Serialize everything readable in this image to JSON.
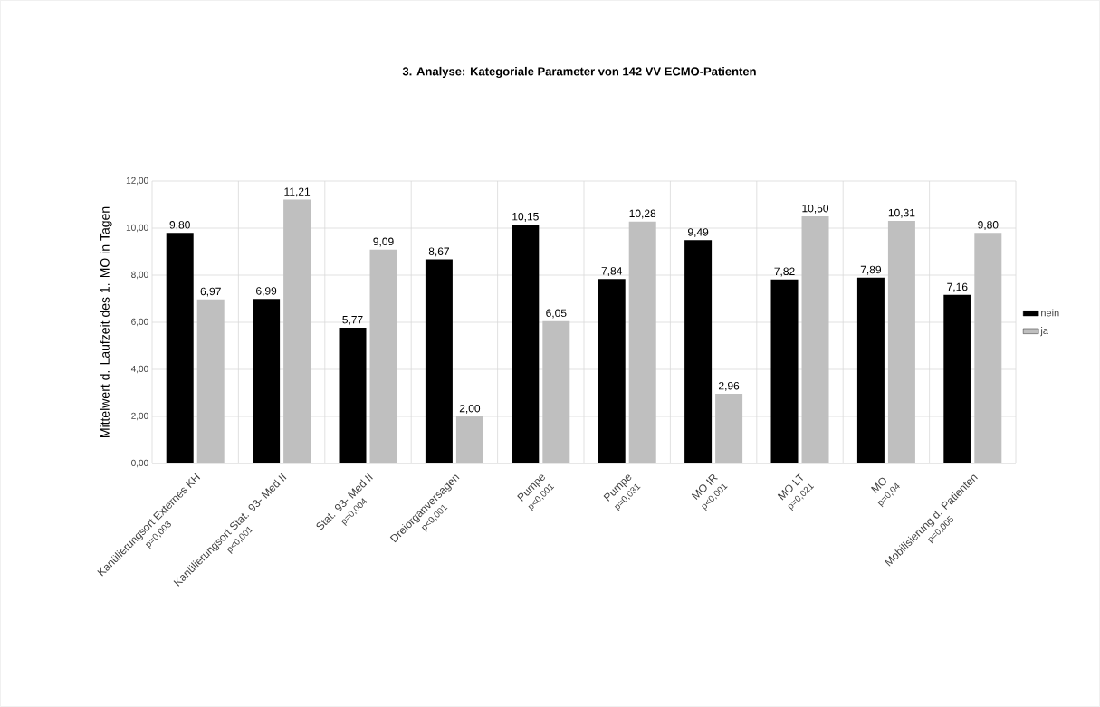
{
  "chart_data": {
    "type": "bar",
    "title": "3. Analyse: Kategoriale Parameter von 142 VV ECMO-Patienten",
    "ylabel": "Mittelwert d. Laufzeit des 1. MO in Tagen",
    "categories": [
      "Kanülierungsort Externes KH",
      "Kanülierungsort Stat. 93- Med II",
      "Stat. 93- Med II",
      "Dreiorganversagen",
      "Pumpe",
      "Pumpe",
      "MO IR",
      "MO LT",
      "MO",
      "Mobilisierung d. Patienten"
    ],
    "annotations": [
      "p=0,003",
      "p<0,001",
      "p=0,004",
      "p<0,001",
      "p<0,001",
      "p=0,031",
      "p<0,001",
      "p=0,021",
      "p=0,04",
      "p=0,005"
    ],
    "series": [
      {
        "name": "nein",
        "color": "#000000",
        "values": [
          9.8,
          6.99,
          5.77,
          8.67,
          10.15,
          7.84,
          9.49,
          7.82,
          7.89,
          7.16
        ],
        "value_labels": [
          "9,80",
          "6,99",
          "5,77",
          "8,67",
          "10,15",
          "7,84",
          "9,49",
          "7,82",
          "7,89",
          "7,16"
        ]
      },
      {
        "name": "ja",
        "color": "#bfbfbf",
        "values": [
          6.97,
          11.21,
          9.09,
          2.0,
          6.05,
          10.28,
          2.96,
          10.5,
          10.31,
          9.8
        ],
        "value_labels": [
          "6,97",
          "11,21",
          "9,09",
          "2,00",
          "6,05",
          "10,28",
          "2,96",
          "10,50",
          "10,31",
          "9,80"
        ]
      }
    ],
    "ylim": [
      0,
      12
    ],
    "yticks": [
      {
        "value": 0,
        "label": "0,00"
      },
      {
        "value": 2,
        "label": "2,00"
      },
      {
        "value": 4,
        "label": "4,00"
      },
      {
        "value": 6,
        "label": "6,00"
      },
      {
        "value": 8,
        "label": "8,00"
      },
      {
        "value": 10,
        "label": "10,00"
      },
      {
        "value": 12,
        "label": "12,00"
      }
    ],
    "grid": true,
    "legend": "right"
  }
}
